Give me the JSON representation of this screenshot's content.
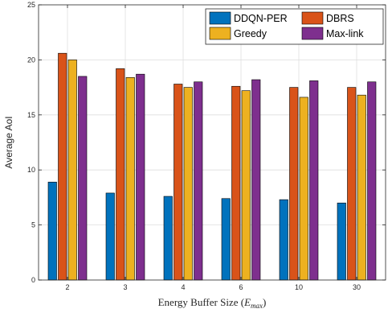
{
  "chart_data": {
    "type": "bar",
    "title": "",
    "xlabel": "Energy Buffer Size (",
    "xlabel_math": "E",
    "xlabel_math_sub": "max",
    "xlabel_close": ")",
    "ylabel": "Average AoI",
    "ylim": [
      0,
      25
    ],
    "yticks": [
      0,
      5,
      10,
      15,
      20,
      25
    ],
    "grid": true,
    "legend_position": "top-right",
    "categories": [
      "2",
      "3",
      "4",
      "6",
      "10",
      "30"
    ],
    "series": [
      {
        "name": "DDQN-PER",
        "color": "#0072BD",
        "values": [
          8.9,
          7.9,
          7.6,
          7.4,
          7.3,
          7.0
        ]
      },
      {
        "name": "DBRS",
        "color": "#D95319",
        "values": [
          20.6,
          19.2,
          17.8,
          17.6,
          17.5,
          17.5
        ]
      },
      {
        "name": "Greedy",
        "color": "#EDB120",
        "values": [
          20.0,
          18.4,
          17.5,
          17.2,
          16.6,
          16.8
        ]
      },
      {
        "name": "Max-link",
        "color": "#7E2F8E",
        "values": [
          18.5,
          18.7,
          18.0,
          18.2,
          18.1,
          18.0
        ]
      }
    ]
  }
}
